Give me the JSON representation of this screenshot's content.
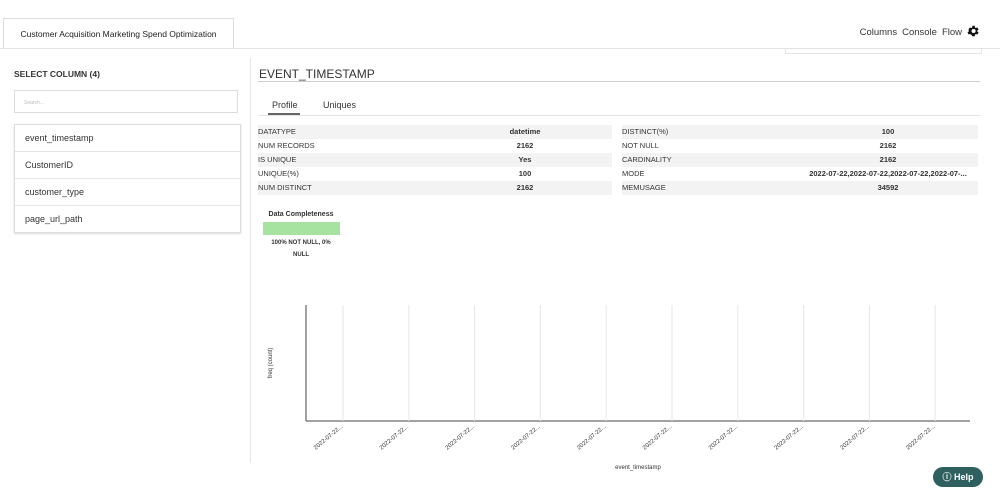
{
  "header": {
    "tab": "Customer Acquisition Marketing Spend Optimization",
    "menu": [
      "Columns",
      "Console",
      "Flow"
    ]
  },
  "sidebar": {
    "title": "SELECT COLUMN (4)",
    "search_placeholder": "Search...",
    "columns": [
      "event_timestamp",
      "CustomerID",
      "customer_type",
      "page_url_path"
    ]
  },
  "main": {
    "title": "EVENT_TIMESTAMP",
    "tabs": [
      "Profile",
      "Uniques"
    ],
    "stats_left": [
      [
        "DATATYPE",
        "datetime"
      ],
      [
        "NUM RECORDS",
        2162
      ],
      [
        "IS UNIQUE",
        "Yes"
      ],
      [
        "UNIQUE(%)",
        100
      ],
      [
        "NUM DISTINCT",
        2162
      ]
    ],
    "stats_right": [
      [
        "DISTINCT(%)",
        100
      ],
      [
        "NOT NULL",
        2162
      ],
      [
        "CARDINALITY",
        2162
      ],
      [
        "MODE",
        "2022-07-22,2022-07-22,2022-07-22,2022-07-..."
      ],
      [
        "MEMUSAGE",
        34592
      ]
    ],
    "completeness": {
      "title": "Data Completeness",
      "caption": "100% NOT NULL, 0% NULL"
    },
    "histogram": {
      "ylabel": "freq (count)",
      "xlabel": "event_timestamp",
      "xtick_labels": [
        "2022-07-22...",
        "2022-07-22...",
        "2022-07-22...",
        "2022-07-22...",
        "2022-07-22...",
        "2022-07-22...",
        "2022-07-22...",
        "2022-07-22...",
        "2022-07-22...",
        "2022-07-22..."
      ]
    }
  },
  "help": "Help"
}
